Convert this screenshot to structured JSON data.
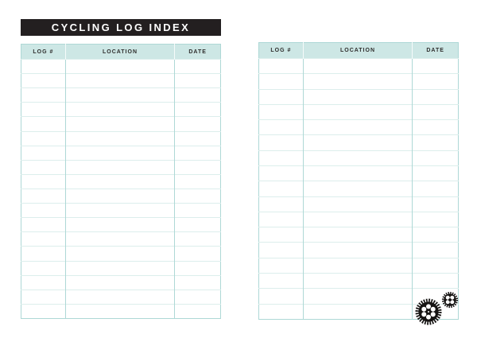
{
  "title_bar": {
    "label": "CYCLING LOG INDEX"
  },
  "table": {
    "columns": [
      "LOG #",
      "LOCATION",
      "DATE"
    ]
  },
  "tables": {
    "left": {
      "rows": 18
    },
    "right": {
      "rows": 17
    }
  },
  "icons": {
    "large_gear": "bike-chainring-gear",
    "small_gear": "bike-sprocket-gear"
  },
  "colors": {
    "title_bar_bg": "#231f20",
    "title_bar_text": "#ffffff",
    "column_header_bg": "#cde7e5",
    "grid_vertical": "#aed8d6",
    "grid_horizontal": "#dceeec",
    "gear": "#161413"
  }
}
